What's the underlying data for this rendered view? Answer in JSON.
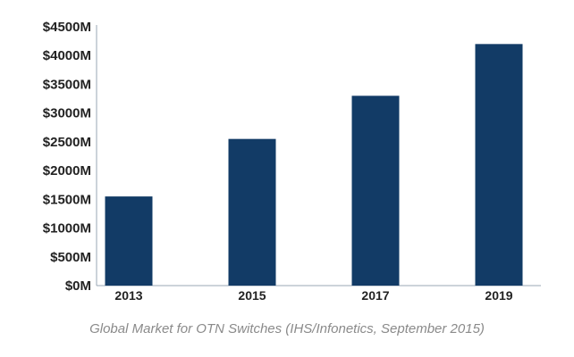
{
  "chart_data": {
    "type": "bar",
    "categories": [
      "2013",
      "2015",
      "2017",
      "2019"
    ],
    "values": [
      1550,
      2550,
      3300,
      4200
    ],
    "title": "",
    "caption": "Global Market for OTN Switches (IHS/Infonetics, September 2015)",
    "xlabel": "",
    "ylabel": "",
    "ylim": [
      0,
      4500
    ],
    "yticks": [
      0,
      500,
      1000,
      1500,
      2000,
      2500,
      3000,
      3500,
      4000,
      4500
    ],
    "ytick_labels": [
      "$0M",
      "$500M",
      "$1000M",
      "$1500M",
      "$2000M",
      "$2500M",
      "$3000M",
      "$3500M",
      "$4000M",
      "$4500M"
    ],
    "grid": false,
    "legend": "none",
    "bar_color": "#123b66",
    "axis_color": "#9aa7b5",
    "text_color": "#222222"
  }
}
